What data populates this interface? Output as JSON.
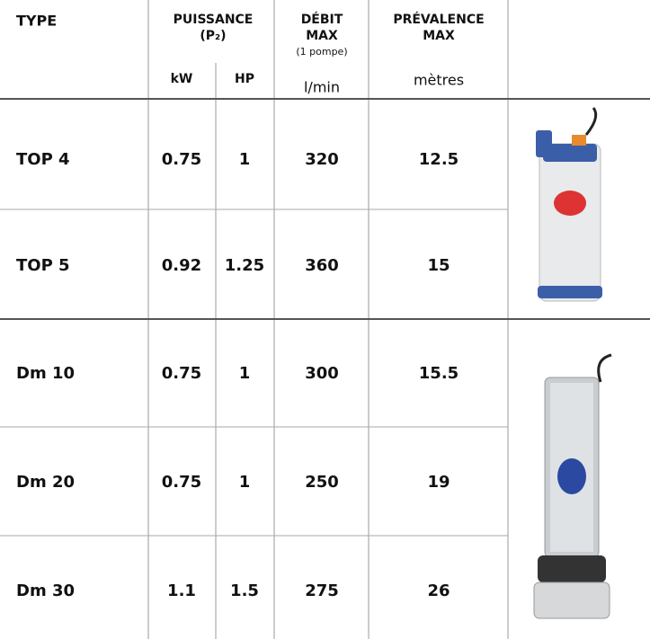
{
  "table": {
    "header": {
      "type": "TYPE",
      "power": [
        "PUISSANCE",
        "(P₂)"
      ],
      "power_units": [
        "kW",
        "HP"
      ],
      "flow": [
        "DÉBIT",
        "MAX",
        "(1 pompe)",
        "l/min"
      ],
      "head": [
        "PRÉVALENCE",
        "MAX",
        "mètres"
      ]
    },
    "rows": [
      [
        "TOP 4",
        "0.75",
        "1",
        "320",
        "12.5"
      ],
      [
        "TOP 5",
        "0.92",
        "1.25",
        "360",
        "15"
      ],
      [
        "Dm 10",
        "0.75",
        "1",
        "300",
        "15.5"
      ],
      [
        "Dm 20",
        "0.75",
        "1",
        "250",
        "19"
      ],
      [
        "Dm 30",
        "1.1",
        "1.5",
        "275",
        "26"
      ]
    ]
  }
}
